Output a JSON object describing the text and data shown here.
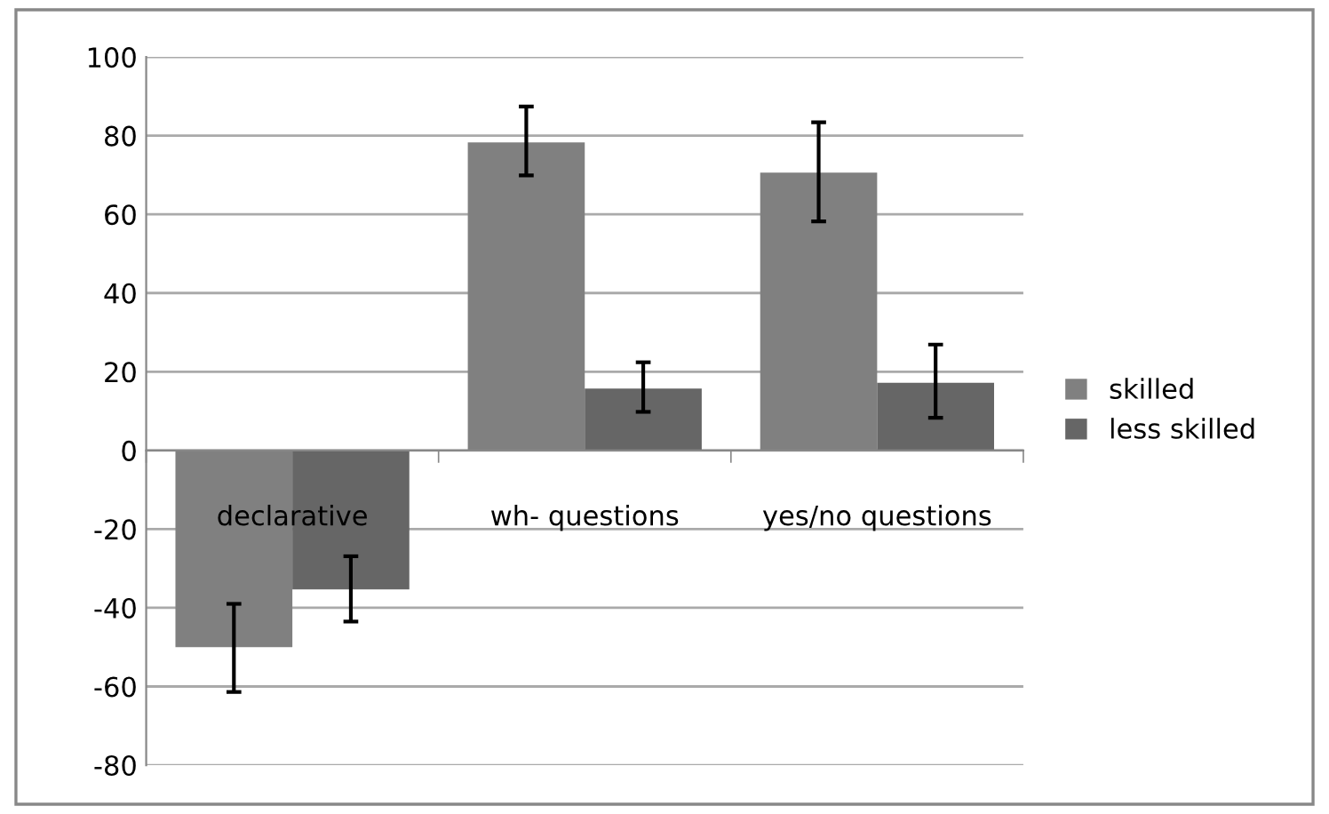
{
  "chart_data": {
    "type": "bar",
    "categories": [
      "declarative",
      "wh- questions",
      "yes/no questions"
    ],
    "series": [
      {
        "name": "skilled",
        "color": "#808080",
        "values": [
          -50,
          78.3,
          70.6
        ],
        "errors": [
          [
            -61.4,
            -39
          ],
          [
            69.9,
            87.4
          ],
          [
            58.2,
            83.4
          ]
        ]
      },
      {
        "name": "less skilled",
        "color": "#666666",
        "values": [
          -35.3,
          15.7,
          17.2
        ],
        "errors": [
          [
            -43.5,
            -26.9
          ],
          [
            9.8,
            22.4
          ],
          [
            8.3,
            26.9
          ]
        ]
      }
    ],
    "ylim": [
      -80,
      100
    ],
    "yticks": [
      -80,
      -60,
      -40,
      -20,
      0,
      20,
      40,
      60,
      80,
      100
    ],
    "grid": "y",
    "legend": "right"
  }
}
